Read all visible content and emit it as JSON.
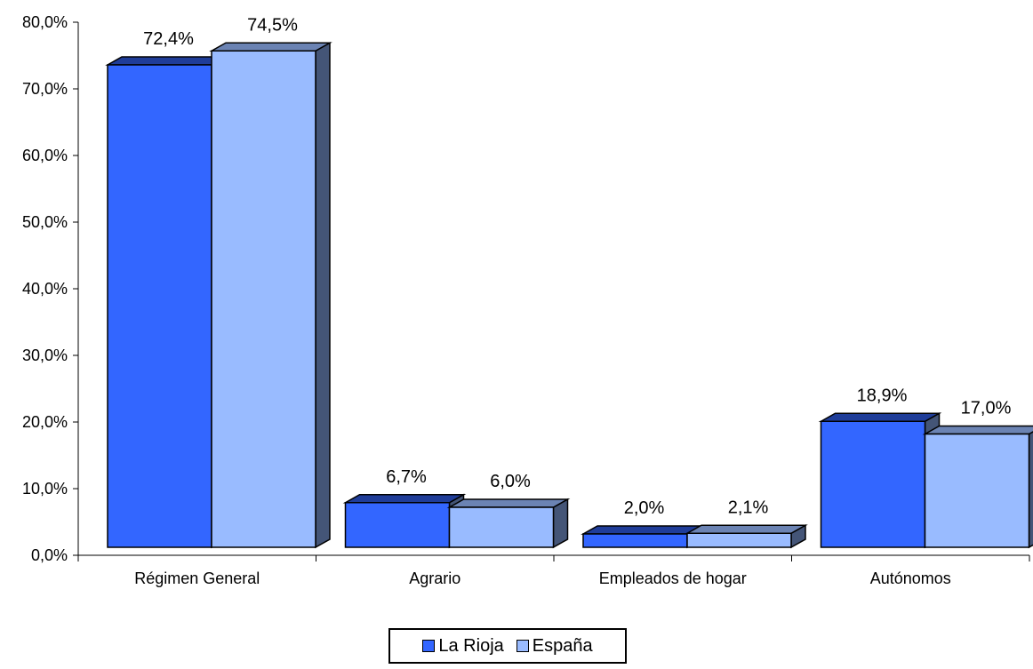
{
  "chart_data": {
    "type": "bar",
    "categories": [
      "Régimen General",
      "Agrario",
      "Empleados de hogar",
      "Autónomos"
    ],
    "series": [
      {
        "name": "La Rioja",
        "values": [
          72.4,
          6.7,
          2.0,
          18.9
        ],
        "labels": [
          "72,4%",
          "6,7%",
          "2,0%",
          "18,9%"
        ],
        "color": "#3366FF"
      },
      {
        "name": "España",
        "values": [
          74.5,
          6.0,
          2.1,
          17.0
        ],
        "labels": [
          "74,5%",
          "6,0%",
          "2,1%",
          "17,0%"
        ],
        "color": "#99BBFF"
      }
    ],
    "yticks": [
      "0,0%",
      "10,0%",
      "20,0%",
      "30,0%",
      "40,0%",
      "50,0%",
      "60,0%",
      "70,0%",
      "80,0%"
    ],
    "ylim": [
      0,
      80
    ],
    "grid": false,
    "legend_position": "bottom",
    "three_d": true
  }
}
